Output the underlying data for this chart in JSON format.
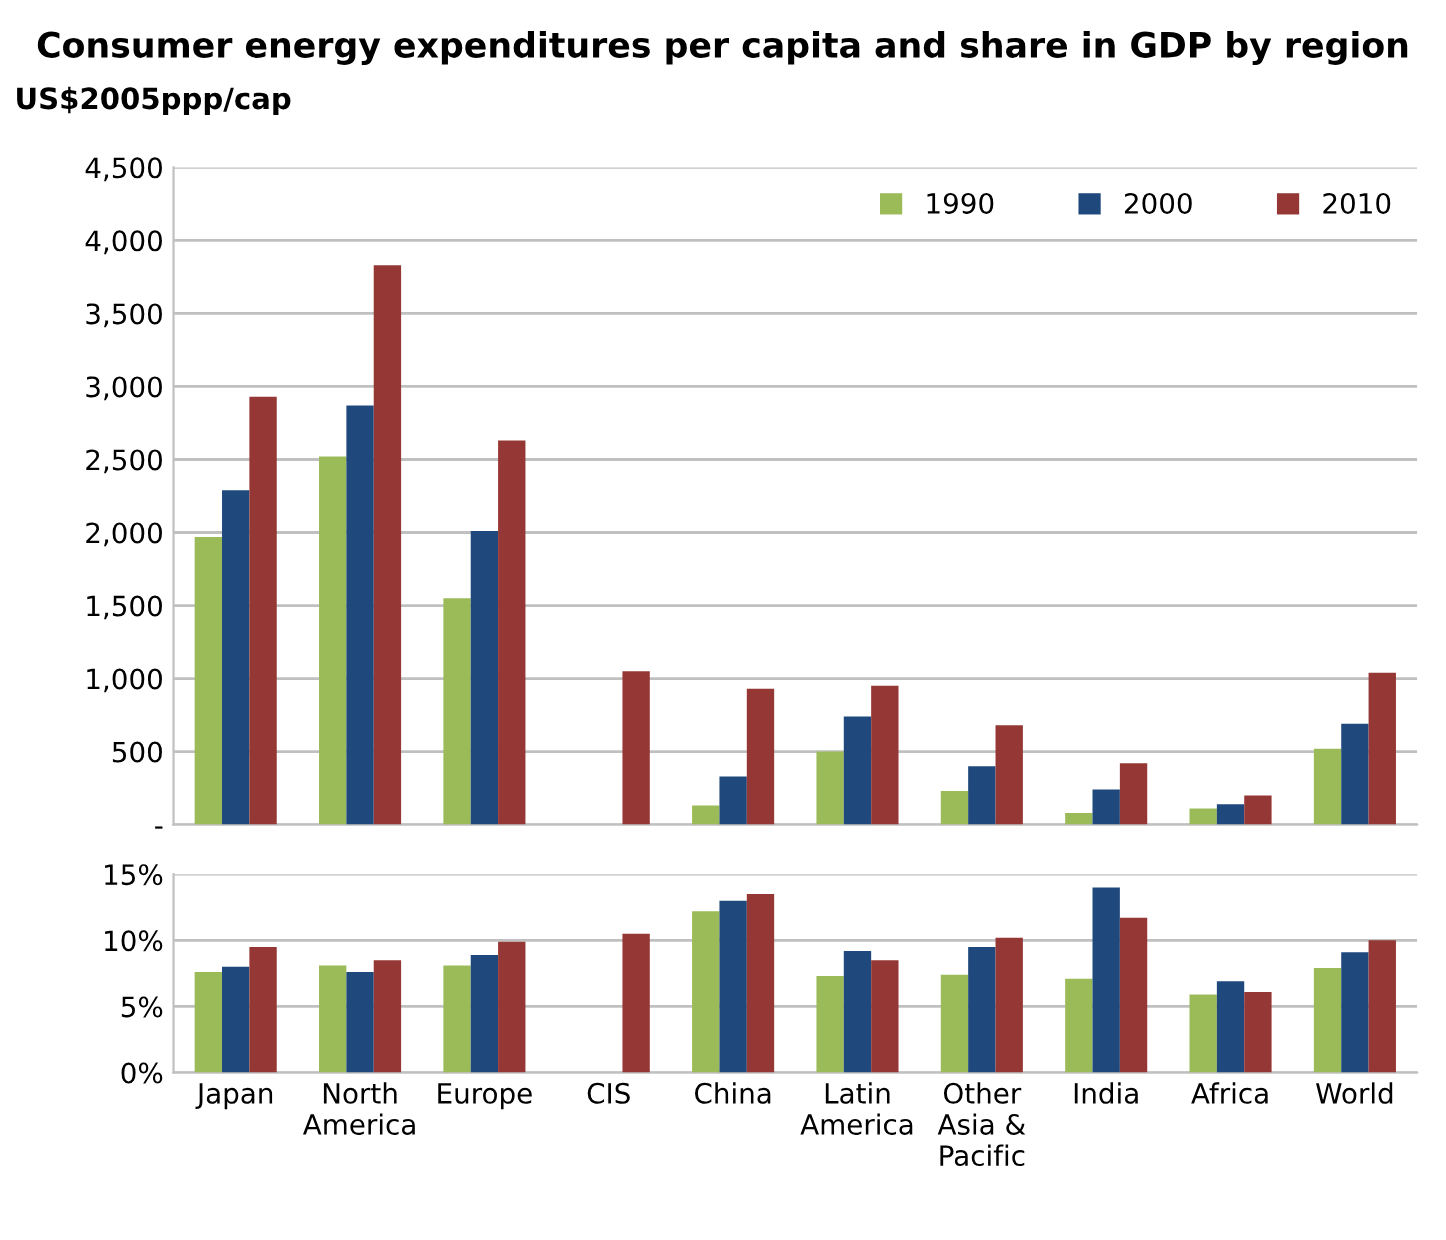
{
  "chart_data": [
    {
      "type": "bar",
      "title": "Consumer energy expenditures per capita and share in GDP by region",
      "ylabel": "US$2005ppp/cap",
      "categories": [
        null,
        null,
        null,
        null,
        null,
        null,
        null,
        null,
        null,
        null
      ],
      "series": [
        {
          "name": "1990",
          "color": "#9bbb59",
          "values": [
            1970,
            2520,
            1550,
            null,
            130,
            500,
            230,
            80,
            110,
            520
          ]
        },
        {
          "name": "2000",
          "color": "#1f497d",
          "values": [
            2290,
            2870,
            2010,
            null,
            330,
            740,
            400,
            240,
            140,
            690
          ]
        },
        {
          "name": "2010",
          "color": "#953735",
          "values": [
            2930,
            3830,
            2630,
            1050,
            930,
            950,
            680,
            420,
            200,
            1040
          ]
        }
      ],
      "ylim": [
        0,
        4500
      ],
      "yticks": [
        {
          "value": 0,
          "label": "-"
        },
        {
          "value": 500,
          "label": "500"
        },
        {
          "value": 1000,
          "label": "1,000"
        },
        {
          "value": 1500,
          "label": "1,500"
        },
        {
          "value": 2000,
          "label": "2,000"
        },
        {
          "value": 2500,
          "label": "2,500"
        },
        {
          "value": 3000,
          "label": "3,000"
        },
        {
          "value": 3500,
          "label": "3,500"
        },
        {
          "value": 4000,
          "label": "4,000"
        },
        {
          "value": 4500,
          "label": "4,500"
        }
      ],
      "grid": "y",
      "legend": "top right",
      "tick_labels": "y"
    },
    {
      "type": "bar",
      "categories": [
        "Japan",
        "North America",
        "Europe",
        "CIS",
        "China",
        "Latin America",
        "Other Asia & Pacific",
        "India",
        "Africa",
        "World"
      ],
      "series": [
        {
          "color": "#9bbb59",
          "values": [
            7.6,
            8.1,
            8.1,
            null,
            12.2,
            7.3,
            7.4,
            7.1,
            5.9,
            7.9
          ]
        },
        {
          "color": "#1f497d",
          "values": [
            8.0,
            7.6,
            8.9,
            null,
            13.0,
            9.2,
            9.5,
            14.0,
            6.9,
            9.1
          ]
        },
        {
          "color": "#953735",
          "values": [
            9.5,
            8.5,
            9.9,
            10.5,
            13.5,
            8.5,
            10.2,
            11.7,
            6.1,
            10.0
          ]
        }
      ],
      "ylim": [
        0,
        15
      ],
      "yticks": [
        {
          "value": 0,
          "label": "0%"
        },
        {
          "value": 5,
          "label": "5%"
        },
        {
          "value": 10,
          "label": "10%"
        },
        {
          "value": 15,
          "label": "15%"
        }
      ],
      "grid": "y"
    }
  ]
}
